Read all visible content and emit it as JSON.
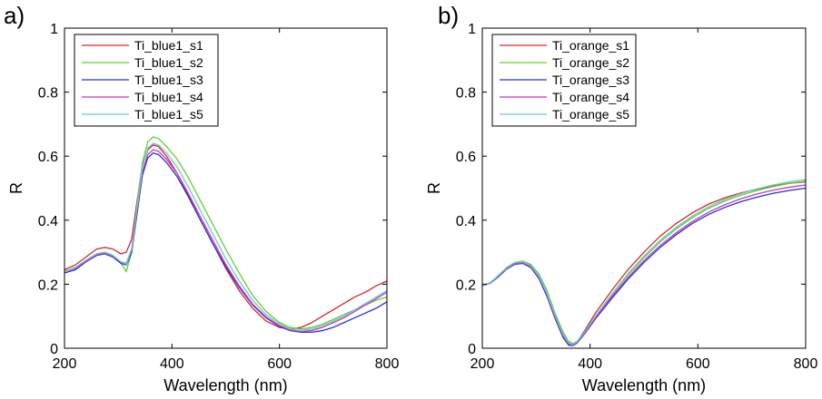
{
  "chart_data": [
    {
      "type": "line",
      "panel_label": "a)",
      "xlabel": "Wavelength (nm)",
      "ylabel": "R",
      "xlim": [
        200,
        800
      ],
      "ylim": [
        0,
        1
      ],
      "xticks": [
        "200",
        "400",
        "600",
        "800"
      ],
      "yticks": [
        "0",
        "0.2",
        "0.4",
        "0.6",
        "0.8",
        "1"
      ],
      "grid": false,
      "legend_position": "top-left",
      "series": [
        {
          "name": "Ti_blue1_s1",
          "color": "#d62728",
          "x": [
            200,
            220,
            240,
            260,
            275,
            290,
            305,
            315,
            325,
            335,
            345,
            355,
            365,
            375,
            390,
            410,
            430,
            450,
            475,
            500,
            525,
            550,
            575,
            600,
            620,
            640,
            660,
            680,
            700,
            720,
            740,
            760,
            780,
            800
          ],
          "y": [
            0.245,
            0.26,
            0.285,
            0.31,
            0.315,
            0.31,
            0.295,
            0.3,
            0.34,
            0.46,
            0.57,
            0.62,
            0.635,
            0.63,
            0.6,
            0.545,
            0.48,
            0.41,
            0.33,
            0.25,
            0.18,
            0.125,
            0.085,
            0.065,
            0.06,
            0.065,
            0.08,
            0.1,
            0.12,
            0.14,
            0.16,
            0.175,
            0.195,
            0.21
          ]
        },
        {
          "name": "Ti_blue1_s2",
          "color": "#66cc33",
          "x": [
            200,
            220,
            240,
            260,
            275,
            290,
            305,
            315,
            325,
            335,
            345,
            355,
            365,
            375,
            390,
            410,
            430,
            450,
            475,
            500,
            525,
            550,
            575,
            600,
            620,
            640,
            660,
            680,
            700,
            720,
            740,
            760,
            780,
            800
          ],
          "y": [
            0.24,
            0.25,
            0.275,
            0.295,
            0.3,
            0.29,
            0.265,
            0.24,
            0.3,
            0.45,
            0.58,
            0.645,
            0.66,
            0.655,
            0.63,
            0.59,
            0.535,
            0.47,
            0.39,
            0.31,
            0.235,
            0.165,
            0.115,
            0.08,
            0.065,
            0.06,
            0.065,
            0.075,
            0.09,
            0.105,
            0.12,
            0.135,
            0.15,
            0.16
          ]
        },
        {
          "name": "Ti_blue1_s3",
          "color": "#2233cc",
          "x": [
            200,
            220,
            240,
            260,
            275,
            290,
            305,
            315,
            325,
            335,
            345,
            355,
            365,
            375,
            390,
            410,
            430,
            450,
            475,
            500,
            525,
            550,
            575,
            600,
            620,
            640,
            660,
            680,
            700,
            720,
            740,
            760,
            780,
            800
          ],
          "y": [
            0.235,
            0.245,
            0.27,
            0.29,
            0.295,
            0.285,
            0.265,
            0.26,
            0.3,
            0.42,
            0.54,
            0.595,
            0.61,
            0.605,
            0.58,
            0.535,
            0.475,
            0.41,
            0.33,
            0.255,
            0.19,
            0.135,
            0.095,
            0.068,
            0.055,
            0.05,
            0.05,
            0.055,
            0.065,
            0.08,
            0.095,
            0.11,
            0.125,
            0.145
          ]
        },
        {
          "name": "Ti_blue1_s4",
          "color": "#cc33cc",
          "x": [
            200,
            220,
            240,
            260,
            275,
            290,
            305,
            315,
            325,
            335,
            345,
            355,
            365,
            375,
            390,
            410,
            430,
            450,
            475,
            500,
            525,
            550,
            575,
            600,
            620,
            640,
            660,
            680,
            700,
            720,
            740,
            760,
            780,
            800
          ],
          "y": [
            0.24,
            0.25,
            0.272,
            0.292,
            0.297,
            0.288,
            0.27,
            0.265,
            0.31,
            0.43,
            0.55,
            0.605,
            0.62,
            0.615,
            0.59,
            0.545,
            0.485,
            0.42,
            0.34,
            0.262,
            0.195,
            0.138,
            0.098,
            0.07,
            0.057,
            0.052,
            0.055,
            0.065,
            0.08,
            0.095,
            0.115,
            0.135,
            0.155,
            0.175
          ]
        },
        {
          "name": "Ti_blue1_s5",
          "color": "#66cccc",
          "x": [
            200,
            220,
            240,
            260,
            275,
            290,
            305,
            315,
            325,
            335,
            345,
            355,
            365,
            375,
            390,
            410,
            430,
            450,
            475,
            500,
            525,
            550,
            575,
            600,
            620,
            640,
            660,
            680,
            700,
            720,
            740,
            760,
            780,
            800
          ],
          "y": [
            0.24,
            0.252,
            0.275,
            0.295,
            0.3,
            0.29,
            0.27,
            0.262,
            0.31,
            0.44,
            0.565,
            0.625,
            0.64,
            0.635,
            0.61,
            0.565,
            0.505,
            0.44,
            0.36,
            0.28,
            0.21,
            0.15,
            0.105,
            0.075,
            0.06,
            0.055,
            0.06,
            0.07,
            0.085,
            0.1,
            0.12,
            0.14,
            0.16,
            0.18
          ]
        }
      ]
    },
    {
      "type": "line",
      "panel_label": "b)",
      "xlabel": "Wavelength (nm)",
      "ylabel": "R",
      "xlim": [
        200,
        800
      ],
      "ylim": [
        0,
        1
      ],
      "xticks": [
        "200",
        "400",
        "600",
        "800"
      ],
      "yticks": [
        "0",
        "0.2",
        "0.4",
        "0.6",
        "0.8",
        "1"
      ],
      "grid": false,
      "legend_position": "top-left",
      "series": [
        {
          "name": "Ti_orange_s1",
          "color": "#d62728",
          "x": [
            200,
            215,
            230,
            245,
            260,
            275,
            290,
            305,
            320,
            335,
            350,
            360,
            367,
            375,
            390,
            410,
            440,
            470,
            500,
            530,
            560,
            590,
            620,
            650,
            680,
            710,
            740,
            770,
            800
          ],
          "y": [
            0.195,
            0.205,
            0.225,
            0.25,
            0.265,
            0.268,
            0.255,
            0.22,
            0.165,
            0.095,
            0.035,
            0.012,
            0.01,
            0.018,
            0.055,
            0.11,
            0.18,
            0.245,
            0.3,
            0.35,
            0.39,
            0.423,
            0.45,
            0.47,
            0.485,
            0.497,
            0.507,
            0.515,
            0.52
          ]
        },
        {
          "name": "Ti_orange_s2",
          "color": "#66cc33",
          "x": [
            200,
            215,
            230,
            245,
            260,
            275,
            290,
            305,
            320,
            335,
            350,
            360,
            367,
            375,
            390,
            410,
            440,
            470,
            500,
            530,
            560,
            590,
            620,
            650,
            680,
            710,
            740,
            770,
            800
          ],
          "y": [
            0.195,
            0.205,
            0.228,
            0.252,
            0.268,
            0.272,
            0.262,
            0.232,
            0.18,
            0.11,
            0.05,
            0.022,
            0.015,
            0.02,
            0.05,
            0.1,
            0.165,
            0.228,
            0.283,
            0.332,
            0.373,
            0.408,
            0.437,
            0.46,
            0.478,
            0.493,
            0.505,
            0.515,
            0.522
          ]
        },
        {
          "name": "Ti_orange_s3",
          "color": "#2233cc",
          "x": [
            200,
            215,
            230,
            245,
            260,
            275,
            290,
            305,
            320,
            335,
            350,
            360,
            367,
            375,
            390,
            410,
            440,
            470,
            500,
            530,
            560,
            590,
            620,
            650,
            680,
            710,
            740,
            770,
            800
          ],
          "y": [
            0.195,
            0.203,
            0.223,
            0.247,
            0.262,
            0.265,
            0.252,
            0.218,
            0.162,
            0.093,
            0.033,
            0.01,
            0.008,
            0.015,
            0.045,
            0.092,
            0.155,
            0.215,
            0.268,
            0.315,
            0.355,
            0.39,
            0.418,
            0.44,
            0.458,
            0.472,
            0.484,
            0.493,
            0.5
          ]
        },
        {
          "name": "Ti_orange_s4",
          "color": "#cc33cc",
          "x": [
            200,
            215,
            230,
            245,
            260,
            275,
            290,
            305,
            320,
            335,
            350,
            360,
            367,
            375,
            390,
            410,
            440,
            470,
            500,
            530,
            560,
            590,
            620,
            650,
            680,
            710,
            740,
            770,
            800
          ],
          "y": [
            0.195,
            0.204,
            0.225,
            0.249,
            0.264,
            0.267,
            0.255,
            0.222,
            0.167,
            0.098,
            0.038,
            0.013,
            0.01,
            0.017,
            0.048,
            0.096,
            0.16,
            0.22,
            0.274,
            0.321,
            0.361,
            0.396,
            0.425,
            0.448,
            0.467,
            0.482,
            0.494,
            0.503,
            0.51
          ]
        },
        {
          "name": "Ti_orange_s5",
          "color": "#66cccc",
          "x": [
            200,
            215,
            230,
            245,
            260,
            275,
            290,
            305,
            320,
            335,
            350,
            360,
            367,
            375,
            390,
            410,
            440,
            470,
            500,
            530,
            560,
            590,
            620,
            650,
            680,
            710,
            740,
            770,
            800
          ],
          "y": [
            0.195,
            0.205,
            0.227,
            0.251,
            0.267,
            0.27,
            0.258,
            0.226,
            0.172,
            0.103,
            0.043,
            0.017,
            0.012,
            0.019,
            0.05,
            0.1,
            0.168,
            0.232,
            0.288,
            0.337,
            0.378,
            0.413,
            0.442,
            0.465,
            0.483,
            0.498,
            0.51,
            0.52,
            0.527
          ]
        }
      ]
    }
  ]
}
